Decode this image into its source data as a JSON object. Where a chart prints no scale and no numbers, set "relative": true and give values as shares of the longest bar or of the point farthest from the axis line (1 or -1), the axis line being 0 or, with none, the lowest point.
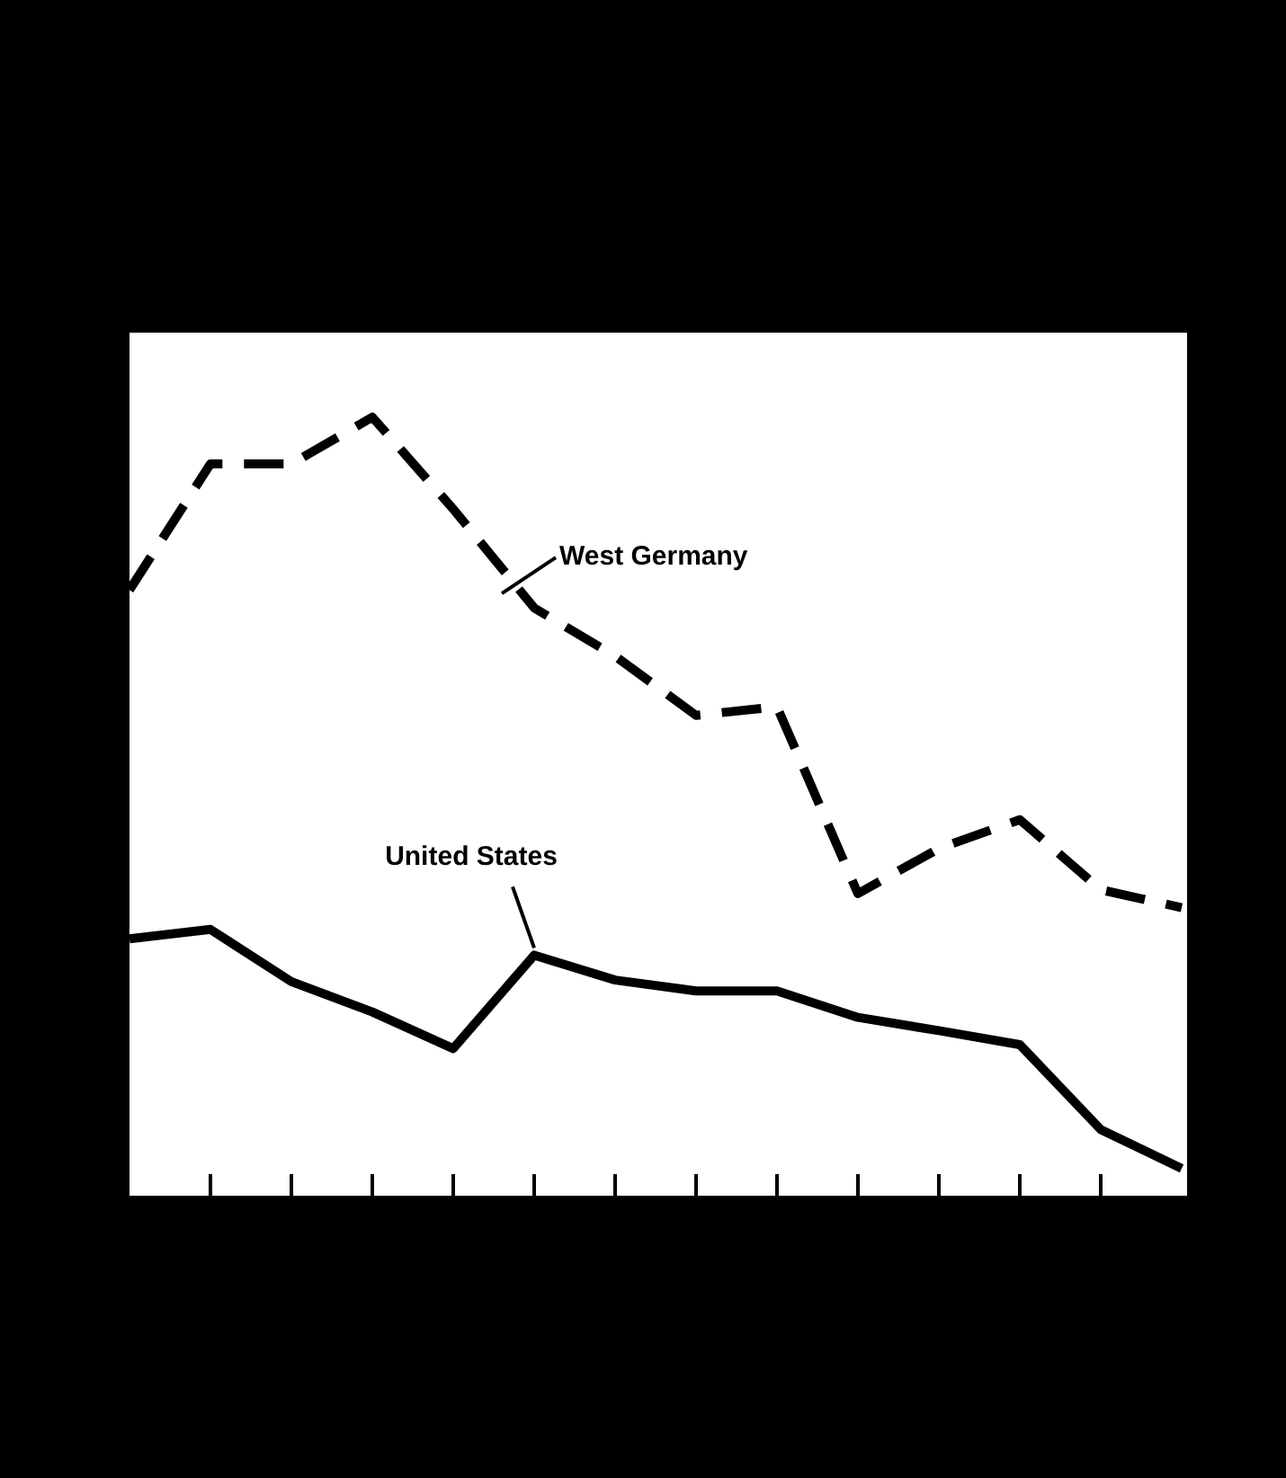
{
  "chart_data": {
    "type": "line",
    "relative": true,
    "legend": false,
    "categories": [
      null,
      null,
      null,
      null,
      null,
      null,
      null,
      null,
      null,
      null,
      null,
      null,
      null,
      null
    ],
    "series": [
      {
        "name": "West Germany",
        "color": "#000000",
        "line_style": "dashed",
        "values": [
          0.778,
          0.94,
          0.94,
          1,
          0.882,
          0.755,
          0.693,
          0.617,
          0.628,
          0.388,
          0.446,
          0.483,
          0.393,
          0.37
        ]
      },
      {
        "name": "United States",
        "color": "#000000",
        "line_style": "solid",
        "values": [
          0.33,
          0.342,
          0.275,
          0.236,
          0.189,
          0.309,
          0.277,
          0.263,
          0.263,
          0.229,
          0.212,
          0.194,
          0.085,
          0.035
        ]
      }
    ]
  }
}
